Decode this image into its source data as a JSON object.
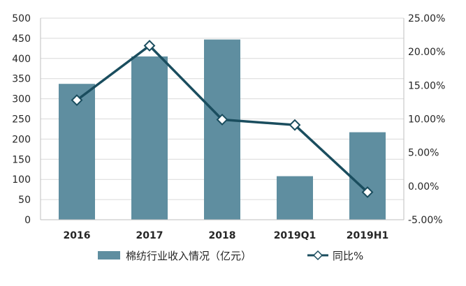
{
  "chart_data": {
    "type": "bar",
    "categories": [
      "2016",
      "2017",
      "2018",
      "2019Q1",
      "2019H1"
    ],
    "series": [
      {
        "name": "棉纺行业收入情况（亿元）",
        "type": "bar",
        "axis": "left",
        "color": "#5f8ea0",
        "values": [
          337,
          405,
          447,
          108,
          217
        ]
      },
      {
        "name": "同比%",
        "type": "line",
        "axis": "right",
        "color": "#1a4d5e",
        "values": [
          12.8,
          20.9,
          9.9,
          9.1,
          -0.9
        ]
      }
    ],
    "y_left": {
      "range": [
        0,
        500
      ],
      "ticks": [
        "0",
        "50",
        "100",
        "150",
        "200",
        "250",
        "300",
        "350",
        "400",
        "450",
        "500"
      ]
    },
    "y_right": {
      "range": [
        -5,
        25
      ],
      "ticks": [
        "-5.00%",
        "0.00%",
        "5.00%",
        "10.00%",
        "15.00%",
        "20.00%",
        "25.00%"
      ]
    },
    "grid": true,
    "legend": "bottom"
  }
}
